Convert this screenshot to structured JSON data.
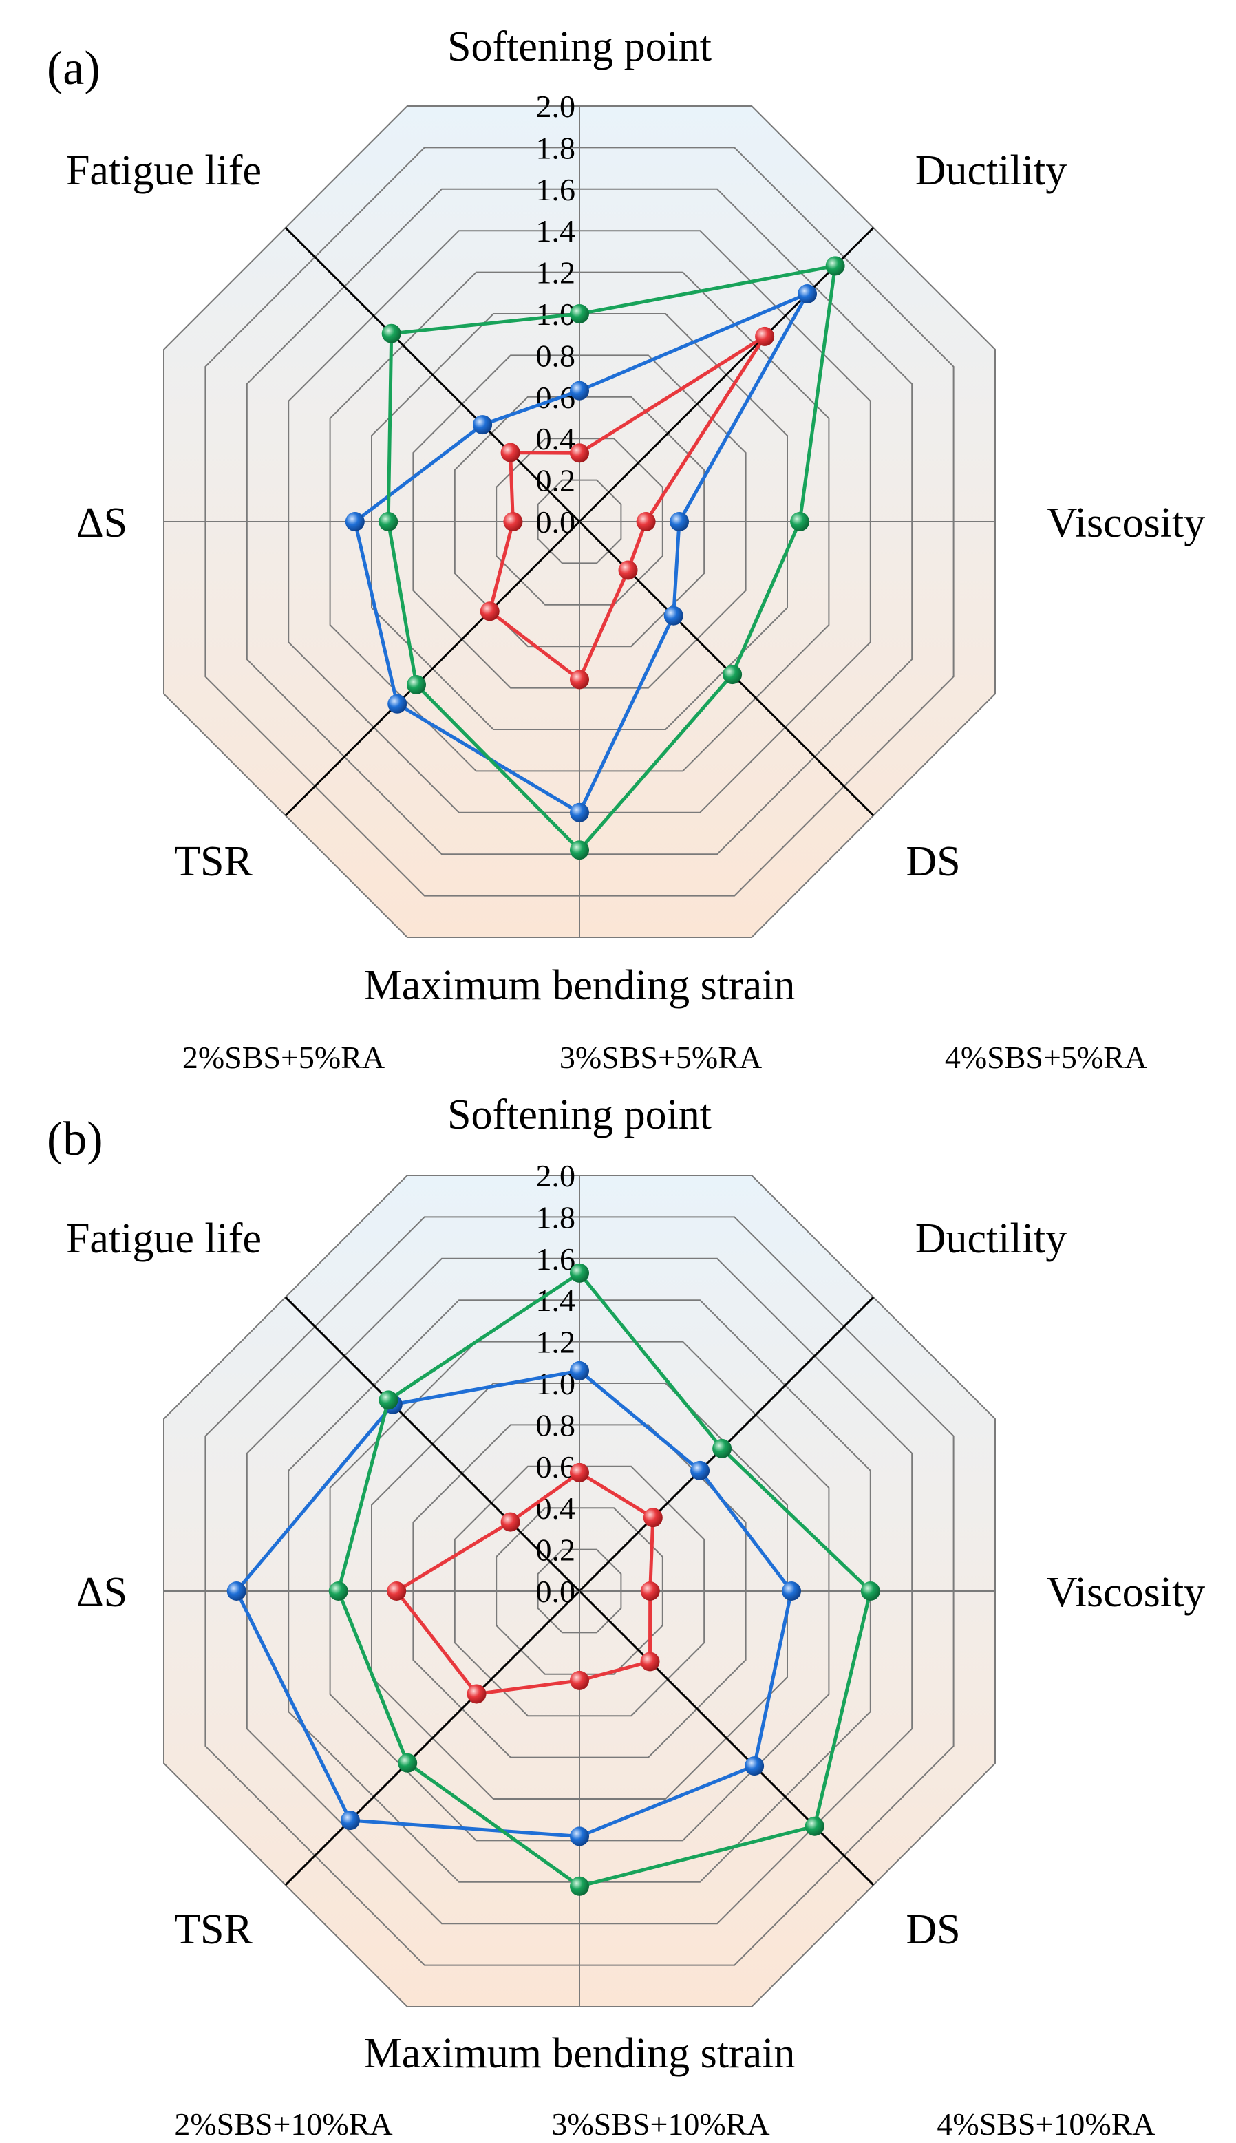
{
  "chart_data": [
    {
      "type": "radar",
      "panel_label": "(a)",
      "axes": [
        "Softening point",
        "Ductility",
        "Viscosity",
        "DS",
        "Maximum bending strain",
        "TSR",
        "ΔS",
        "Fatigue life"
      ],
      "rlim": [
        0,
        2
      ],
      "ticks": [
        "0.0",
        "0.2",
        "0.4",
        "0.6",
        "0.8",
        "1.0",
        "1.2",
        "1.4",
        "1.6",
        "1.8",
        "2.0"
      ],
      "series": [
        {
          "name": "2%SBS+5%RA",
          "color": "#e8383d",
          "values": [
            0.33,
            1.26,
            0.32,
            0.33,
            0.76,
            0.61,
            0.32,
            0.47
          ]
        },
        {
          "name": "3%SBS+5%RA",
          "color": "#1f6fd6",
          "values": [
            0.63,
            1.55,
            0.48,
            0.64,
            1.4,
            1.24,
            1.08,
            0.66
          ]
        },
        {
          "name": "4%SBS+5%RA",
          "color": "#18a35a",
          "values": [
            1.0,
            1.74,
            1.06,
            1.04,
            1.58,
            1.11,
            0.92,
            1.28
          ]
        }
      ]
    },
    {
      "type": "radar",
      "panel_label": "(b)",
      "axes": [
        "Softening point",
        "Ductility",
        "Viscosity",
        "DS",
        "Maximum bending strain",
        "TSR",
        "ΔS",
        "Fatigue life"
      ],
      "rlim": [
        0,
        2
      ],
      "ticks": [
        "0.0",
        "0.2",
        "0.4",
        "0.6",
        "0.8",
        "1.0",
        "1.2",
        "1.4",
        "1.6",
        "1.8",
        "2.0"
      ],
      "series": [
        {
          "name": "2%SBS+10%RA",
          "color": "#e8383d",
          "values": [
            0.57,
            0.5,
            0.34,
            0.48,
            0.43,
            0.7,
            0.88,
            0.47
          ]
        },
        {
          "name": "3%SBS+10%RA",
          "color": "#1f6fd6",
          "values": [
            1.06,
            0.82,
            1.02,
            1.19,
            1.18,
            1.56,
            1.65,
            1.27
          ]
        },
        {
          "name": "4%SBS+10%RA",
          "color": "#18a35a",
          "values": [
            1.53,
            0.97,
            1.4,
            1.6,
            1.42,
            1.17,
            1.16,
            1.3
          ]
        }
      ]
    }
  ]
}
